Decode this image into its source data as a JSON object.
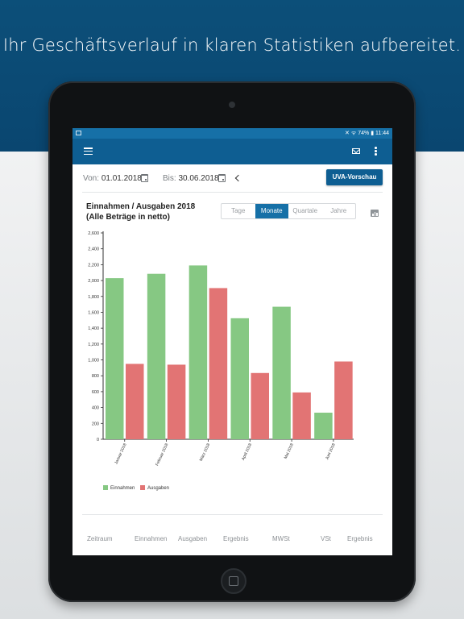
{
  "headline": "Ihr Geschäftsverlauf in klaren Statistiken aufbereitet.",
  "statusbar": {
    "battery": "74%",
    "time": "11:44"
  },
  "dates": {
    "from_label": "Von:",
    "from_value": "01.01.2018",
    "to_label": "Bis:",
    "to_value": "30.06.2018"
  },
  "uva_button": "UVA-Vorschau",
  "chart_title_line1": "Einnahmen / Ausgaben 2018",
  "chart_title_line2": "(Alle Beträge in netto)",
  "segments": {
    "tage": "Tage",
    "monate": "Monate",
    "quartale": "Quartale",
    "jahre": "Jahre",
    "active": "Monate"
  },
  "colors": {
    "einnahmen": "#86c883",
    "ausgaben": "#e27474",
    "primary": "#0e5e92"
  },
  "chart_data": {
    "type": "bar",
    "categories": [
      "Januar 2018",
      "Februar 2018",
      "März 2018",
      "April 2018",
      "Mai 2018",
      "Juni 2018"
    ],
    "series": [
      {
        "name": "Einnahmen",
        "values": [
          2030,
          2085,
          2190,
          1525,
          1670,
          335
        ]
      },
      {
        "name": "Ausgaben",
        "values": [
          950,
          940,
          1905,
          835,
          590,
          980
        ]
      }
    ],
    "yticks": [
      "0",
      "200",
      "400",
      "600",
      "800",
      "1,000",
      "1,200",
      "1,400",
      "1,600",
      "1,800",
      "2,000",
      "2,200",
      "2,400",
      "2,600"
    ],
    "ylim": [
      0,
      2600
    ],
    "legend_position": "bottom-left",
    "grid": false
  },
  "legend": {
    "einnahmen": "Einnahmen",
    "ausgaben": "Ausgaben"
  },
  "footer": [
    "Zeitraum",
    "Einnahmen",
    "Ausgaben",
    "Ergebnis",
    "MWSt",
    "VSt",
    "Ergebnis"
  ]
}
